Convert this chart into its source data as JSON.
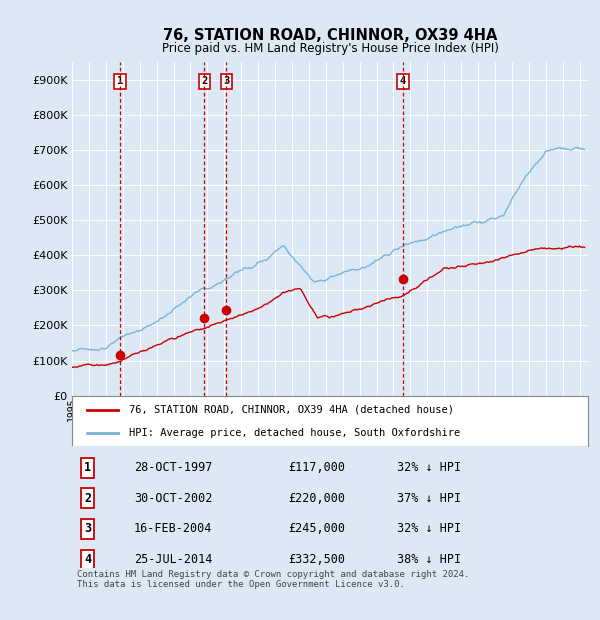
{
  "title": "76, STATION ROAD, CHINNOR, OX39 4HA",
  "subtitle": "Price paid vs. HM Land Registry's House Price Index (HPI)",
  "background_color": "#dce9f5",
  "plot_bg_color": "#dce9f5",
  "hpi_color": "#7ab4d8",
  "price_color": "#cc0000",
  "ylim": [
    0,
    950000
  ],
  "yticks": [
    0,
    100000,
    200000,
    300000,
    400000,
    500000,
    600000,
    700000,
    800000,
    900000
  ],
  "sales": [
    {
      "num": 1,
      "date_x": 1997.83,
      "price": 117000,
      "label": "1",
      "date_str": "28-OCT-1997",
      "price_str": "£117,000",
      "hpi_str": "32% ↓ HPI"
    },
    {
      "num": 2,
      "date_x": 2002.83,
      "price": 220000,
      "label": "2",
      "date_str": "30-OCT-2002",
      "price_str": "£220,000",
      "hpi_str": "37% ↓ HPI"
    },
    {
      "num": 3,
      "date_x": 2004.12,
      "price": 245000,
      "label": "3",
      "date_str": "16-FEB-2004",
      "price_str": "£245,000",
      "hpi_str": "32% ↓ HPI"
    },
    {
      "num": 4,
      "date_x": 2014.56,
      "price": 332500,
      "label": "4",
      "date_str": "25-JUL-2014",
      "price_str": "£332,500",
      "hpi_str": "38% ↓ HPI"
    }
  ],
  "legend_entries": [
    {
      "label": "76, STATION ROAD, CHINNOR, OX39 4HA (detached house)",
      "color": "#cc0000"
    },
    {
      "label": "HPI: Average price, detached house, South Oxfordshire",
      "color": "#7ab4d8"
    }
  ],
  "footnote": "Contains HM Land Registry data © Crown copyright and database right 2024.\nThis data is licensed under the Open Government Licence v3.0.",
  "xmin": 1995,
  "xmax": 2025.5
}
